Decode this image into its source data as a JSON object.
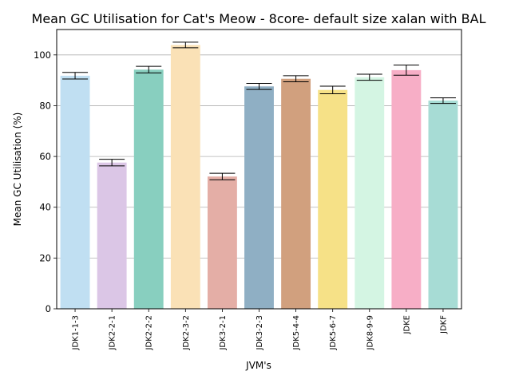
{
  "chart_data": {
    "type": "bar",
    "title": "Mean GC Utilisation for Cat's Meow - 8core- default size xalan with BAL",
    "xlabel": "JVM's",
    "ylabel": "Mean GC Utilisation (%)",
    "ylim": [
      0,
      110
    ],
    "yticks": [
      0,
      20,
      40,
      60,
      80,
      100
    ],
    "grid": "horizontal",
    "categories": [
      "JDK1-1-3",
      "JDK2-2-1",
      "JDK2-2-2",
      "JDK2-3-2",
      "JDK3-2-1",
      "JDK3-2-3",
      "JDK5-4-4",
      "JDK5-6-7",
      "JDK8-9-9",
      "JDKE",
      "JDKF"
    ],
    "values": [
      91.8,
      57.6,
      94.2,
      103.9,
      52.1,
      87.6,
      90.6,
      86.2,
      91.2,
      94.0,
      82.0
    ],
    "errors": [
      1.3,
      1.3,
      1.3,
      1.1,
      1.3,
      1.2,
      1.2,
      1.5,
      1.2,
      2.0,
      1.1
    ],
    "colors": [
      "#c0dff2",
      "#dbc6e6",
      "#88cfbf",
      "#fae1b6",
      "#e4aea6",
      "#8fafc4",
      "#d1a07e",
      "#f6e187",
      "#d4f5e3",
      "#f7aec6",
      "#a7dcd5"
    ]
  }
}
